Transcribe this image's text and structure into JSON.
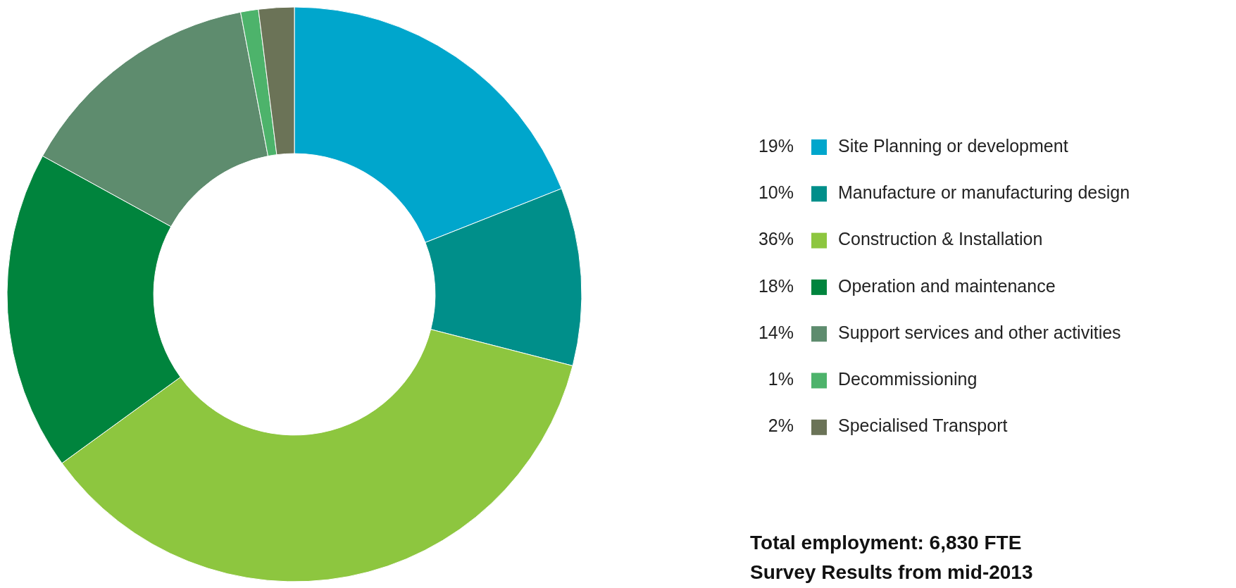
{
  "chart_data": {
    "type": "donut",
    "categories": [
      "Site Planning or development",
      "Manufacture or manufacturing design",
      "Construction & Installation",
      "Operation and maintenance",
      "Support services and other activities",
      "Decommissioning",
      "Specialised Transport"
    ],
    "values": [
      19,
      10,
      36,
      18,
      14,
      1,
      2
    ],
    "colors": [
      "#00a6cc",
      "#008f8a",
      "#8dc63f",
      "#00843d",
      "#5e8c6e",
      "#4db36b",
      "#6b7357"
    ],
    "value_labels": [
      "19%",
      "10%",
      "36%",
      "18%",
      "14%",
      "1%",
      "2%"
    ],
    "legend": "right",
    "annotations": [
      "Total employment: 6,830 FTE",
      "Survey Results from mid-2013"
    ]
  }
}
